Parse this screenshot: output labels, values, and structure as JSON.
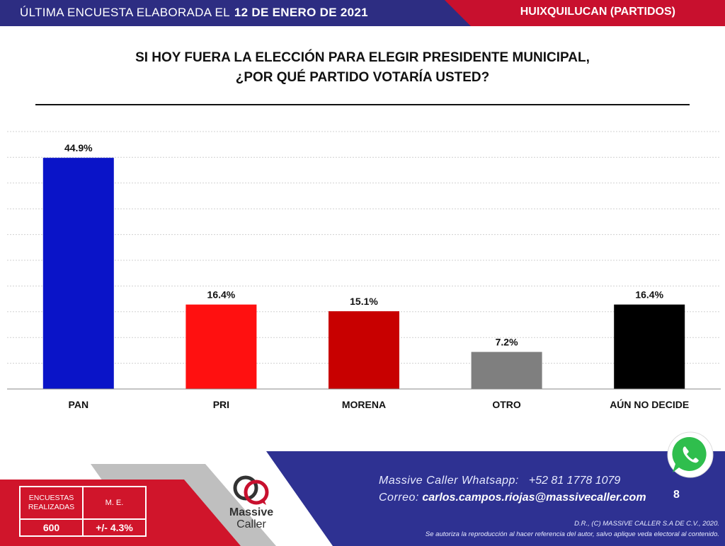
{
  "header": {
    "left_text": "ÚLTIMA ENCUESTA ELABORADA EL",
    "date": "12 DE ENERO DE 2021",
    "right_text": "HUIXQUILUCAN (PARTIDOS)"
  },
  "title": {
    "line1": "SI HOY FUERA LA ELECCIÓN PARA ELEGIR PRESIDENTE MUNICIPAL,",
    "line2": "¿POR QUÉ PARTIDO VOTARÍA USTED?"
  },
  "chart_data": {
    "type": "bar",
    "categories": [
      "PAN",
      "PRI",
      "MORENA",
      "OTRO",
      "AÚN NO DECIDE"
    ],
    "values": [
      44.9,
      16.4,
      15.1,
      7.2,
      16.4
    ],
    "value_labels": [
      "44.9%",
      "16.4%",
      "15.1%",
      "7.2%",
      "16.4%"
    ],
    "colors": [
      "#0a14c8",
      "#ff1010",
      "#c80000",
      "#7f7f7f",
      "#000000"
    ],
    "ylim": [
      0,
      50
    ],
    "grid": true,
    "legend": "none"
  },
  "footer": {
    "whatsapp_label": "Massive Caller Whatsapp:",
    "whatsapp_number": "+52 81 1778 1079",
    "email_label": "Correo:",
    "email": "carlos.campos.riojas@massivecaller.com",
    "page_number": "8",
    "legal_line1": "D.R., (C) MASSIVE CALLER S.A DE C.V., 2020.",
    "legal_line2": "Se autoriza la reproducción al hacer referencia del autor, salvo aplique veda electoral al contenido.",
    "stats_header1": "ENCUESTAS REALIZADAS",
    "stats_header2": "M. E.",
    "stats_value1": "600",
    "stats_value2": "+/- 4.3%",
    "logo_line1": "Massive",
    "logo_line2": "Caller",
    "icons": [
      "massive-caller-logo-icon",
      "whatsapp-icon"
    ]
  },
  "colors": {
    "header_blue": "#2d2d82",
    "header_red": "#c8102e",
    "footer_blue": "#2e3192",
    "footer_red": "#d0152b",
    "footer_gray": "#bfbfbf"
  }
}
